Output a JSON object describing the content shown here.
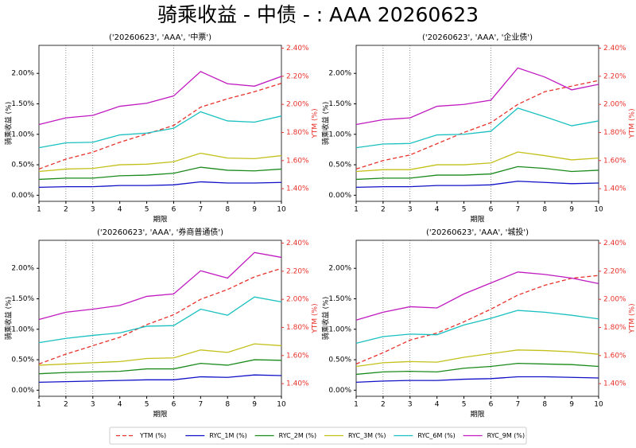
{
  "title": "骑乘收益 - 中债 - : AAA 20260623",
  "chart_data": [
    {
      "type": "line",
      "title": "('20260623', 'AAA', '中票')",
      "x_label": "期限",
      "y_label": "骑乘收益 (%)",
      "y2_label": "YTM (%)",
      "x": [
        1,
        2,
        3,
        4,
        5,
        6,
        7,
        8,
        9,
        10
      ],
      "xlim": [
        1,
        10
      ],
      "xticks": [
        1,
        2,
        3,
        4,
        5,
        6,
        7,
        8,
        9,
        10
      ],
      "vlines": [
        2,
        3,
        6
      ],
      "ylim": [
        -0.1,
        2.46
      ],
      "yticks": [
        {
          "value": 0,
          "label": "0.00%"
        },
        {
          "value": 0.5,
          "label": "0.50%"
        },
        {
          "value": 1,
          "label": "1.00%"
        },
        {
          "value": 1.5,
          "label": "1.50%"
        },
        {
          "value": 2,
          "label": "2.00%"
        }
      ],
      "y2lim": [
        1.31,
        2.42
      ],
      "y2ticks": [
        {
          "value": 1.4,
          "label": "1.40%"
        },
        {
          "value": 1.6,
          "label": "1.60%"
        },
        {
          "value": 1.8,
          "label": "1.80%"
        },
        {
          "value": 2.0,
          "label": "2.00%"
        },
        {
          "value": 2.2,
          "label": "2.20%"
        },
        {
          "value": 2.4,
          "label": "2.40%"
        }
      ],
      "series": [
        {
          "name": "YTM (%)",
          "color": "#e8312a",
          "linestyle": "dashed",
          "axis": "y2",
          "values": [
            1.54,
            1.61,
            1.66,
            1.73,
            1.79,
            1.85,
            1.98,
            2.04,
            2.09,
            2.15
          ]
        },
        {
          "name": "RYC_1M (%)",
          "color": "#1010c8",
          "values": [
            0.13,
            0.14,
            0.14,
            0.16,
            0.16,
            0.17,
            0.22,
            0.2,
            0.2,
            0.21
          ]
        },
        {
          "name": "RYC_2M (%)",
          "color": "#1a8a1a",
          "values": [
            0.26,
            0.28,
            0.28,
            0.32,
            0.33,
            0.36,
            0.46,
            0.41,
            0.4,
            0.43
          ]
        },
        {
          "name": "RYC_3M (%)",
          "color": "#c4c01a",
          "values": [
            0.39,
            0.43,
            0.44,
            0.5,
            0.51,
            0.55,
            0.69,
            0.61,
            0.6,
            0.65
          ]
        },
        {
          "name": "RYC_6M (%)",
          "color": "#1ac0c0",
          "values": [
            0.78,
            0.86,
            0.87,
            0.99,
            1.02,
            1.1,
            1.37,
            1.22,
            1.2,
            1.3
          ]
        },
        {
          "name": "RYC_9M (%)",
          "color": "#c01ac0",
          "values": [
            1.16,
            1.27,
            1.31,
            1.46,
            1.51,
            1.63,
            2.03,
            1.83,
            1.79,
            1.95
          ]
        }
      ]
    },
    {
      "type": "line",
      "title": "('20260623', 'AAA', '企业债')",
      "x_label": "期限",
      "y_label": "骑乘收益 (%)",
      "y2_label": "YTM (%)",
      "x": [
        1,
        2,
        3,
        4,
        5,
        6,
        7,
        8,
        9,
        10
      ],
      "xlim": [
        1,
        10
      ],
      "xticks": [
        1,
        2,
        3,
        4,
        5,
        6,
        7,
        8,
        9,
        10
      ],
      "vlines": [
        2,
        3,
        6
      ],
      "ylim": [
        -0.1,
        2.46
      ],
      "yticks": [
        {
          "value": 0,
          "label": "0.00%"
        },
        {
          "value": 0.5,
          "label": "0.50%"
        },
        {
          "value": 1,
          "label": "1.00%"
        },
        {
          "value": 1.5,
          "label": "1.50%"
        },
        {
          "value": 2,
          "label": "2.00%"
        }
      ],
      "y2lim": [
        1.31,
        2.42
      ],
      "y2ticks": [
        {
          "value": 1.4,
          "label": "1.40%"
        },
        {
          "value": 1.6,
          "label": "1.60%"
        },
        {
          "value": 1.8,
          "label": "1.80%"
        },
        {
          "value": 2.0,
          "label": "2.00%"
        },
        {
          "value": 2.2,
          "label": "2.20%"
        },
        {
          "value": 2.4,
          "label": "2.40%"
        }
      ],
      "series": [
        {
          "name": "YTM (%)",
          "color": "#e8312a",
          "linestyle": "dashed",
          "axis": "y2",
          "values": [
            1.54,
            1.6,
            1.64,
            1.72,
            1.8,
            1.87,
            2.0,
            2.09,
            2.13,
            2.17
          ]
        },
        {
          "name": "RYC_1M (%)",
          "color": "#1010c8",
          "values": [
            0.13,
            0.14,
            0.14,
            0.16,
            0.16,
            0.17,
            0.23,
            0.21,
            0.19,
            0.2
          ]
        },
        {
          "name": "RYC_2M (%)",
          "color": "#1a8a1a",
          "values": [
            0.26,
            0.28,
            0.28,
            0.33,
            0.33,
            0.35,
            0.47,
            0.44,
            0.39,
            0.41
          ]
        },
        {
          "name": "RYC_3M (%)",
          "color": "#c4c01a",
          "values": [
            0.39,
            0.42,
            0.42,
            0.5,
            0.5,
            0.53,
            0.71,
            0.65,
            0.58,
            0.61
          ]
        },
        {
          "name": "RYC_6M (%)",
          "color": "#1ac0c0",
          "values": [
            0.78,
            0.84,
            0.85,
            0.99,
            1.0,
            1.05,
            1.43,
            1.29,
            1.14,
            1.22
          ]
        },
        {
          "name": "RYC_9M (%)",
          "color": "#c01ac0",
          "values": [
            1.16,
            1.24,
            1.27,
            1.46,
            1.49,
            1.56,
            2.09,
            1.94,
            1.73,
            1.82
          ]
        }
      ]
    },
    {
      "type": "line",
      "title": "('20260623', 'AAA', '券商普通债')",
      "x_label": "期限",
      "y_label": "骑乘收益 (%)",
      "y2_label": "YTM (%)",
      "x": [
        1,
        2,
        3,
        4,
        5,
        6,
        7,
        8,
        9,
        10
      ],
      "xlim": [
        1,
        10
      ],
      "xticks": [
        1,
        2,
        3,
        4,
        5,
        6,
        7,
        8,
        9,
        10
      ],
      "vlines": [
        2,
        3,
        6
      ],
      "ylim": [
        -0.1,
        2.46
      ],
      "yticks": [
        {
          "value": 0,
          "label": "0.00%"
        },
        {
          "value": 0.5,
          "label": "0.50%"
        },
        {
          "value": 1,
          "label": "1.00%"
        },
        {
          "value": 1.5,
          "label": "1.50%"
        },
        {
          "value": 2,
          "label": "2.00%"
        }
      ],
      "y2lim": [
        1.31,
        2.42
      ],
      "y2ticks": [
        {
          "value": 1.4,
          "label": "1.40%"
        },
        {
          "value": 1.6,
          "label": "1.60%"
        },
        {
          "value": 1.8,
          "label": "1.80%"
        },
        {
          "value": 2.0,
          "label": "2.00%"
        },
        {
          "value": 2.2,
          "label": "2.20%"
        },
        {
          "value": 2.4,
          "label": "2.40%"
        }
      ],
      "series": [
        {
          "name": "YTM (%)",
          "color": "#e8312a",
          "linestyle": "dashed",
          "axis": "y2",
          "values": [
            1.54,
            1.61,
            1.67,
            1.73,
            1.82,
            1.89,
            2.0,
            2.07,
            2.16,
            2.22
          ]
        },
        {
          "name": "RYC_1M (%)",
          "color": "#1010c8",
          "values": [
            0.13,
            0.14,
            0.15,
            0.16,
            0.17,
            0.17,
            0.22,
            0.21,
            0.25,
            0.24
          ]
        },
        {
          "name": "RYC_2M (%)",
          "color": "#1a8a1a",
          "values": [
            0.27,
            0.29,
            0.3,
            0.31,
            0.35,
            0.35,
            0.44,
            0.41,
            0.5,
            0.49
          ]
        },
        {
          "name": "RYC_3M (%)",
          "color": "#c4c01a",
          "values": [
            0.41,
            0.43,
            0.45,
            0.47,
            0.52,
            0.53,
            0.66,
            0.62,
            0.76,
            0.73
          ]
        },
        {
          "name": "RYC_6M (%)",
          "color": "#1ac0c0",
          "values": [
            0.78,
            0.85,
            0.9,
            0.94,
            1.05,
            1.06,
            1.33,
            1.23,
            1.53,
            1.45
          ]
        },
        {
          "name": "RYC_9M (%)",
          "color": "#c01ac0",
          "values": [
            1.16,
            1.28,
            1.33,
            1.39,
            1.54,
            1.58,
            1.96,
            1.84,
            2.26,
            2.18
          ]
        }
      ]
    },
    {
      "type": "line",
      "title": "('20260623', 'AAA', '城投')",
      "x_label": "期限",
      "y_label": "骑乘收益 (%)",
      "y2_label": "YTM (%)",
      "x": [
        1,
        2,
        3,
        4,
        5,
        6,
        7,
        8,
        9,
        10
      ],
      "xlim": [
        1,
        10
      ],
      "xticks": [
        1,
        2,
        3,
        4,
        5,
        6,
        7,
        8,
        9,
        10
      ],
      "vlines": [
        2,
        3,
        6
      ],
      "ylim": [
        -0.1,
        2.46
      ],
      "yticks": [
        {
          "value": 0,
          "label": "0.00%"
        },
        {
          "value": 0.5,
          "label": "0.50%"
        },
        {
          "value": 1,
          "label": "1.00%"
        },
        {
          "value": 1.5,
          "label": "1.50%"
        },
        {
          "value": 2,
          "label": "2.00%"
        }
      ],
      "y2lim": [
        1.31,
        2.42
      ],
      "y2ticks": [
        {
          "value": 1.4,
          "label": "1.40%"
        },
        {
          "value": 1.6,
          "label": "1.60%"
        },
        {
          "value": 1.8,
          "label": "1.80%"
        },
        {
          "value": 2.0,
          "label": "2.00%"
        },
        {
          "value": 2.2,
          "label": "2.20%"
        },
        {
          "value": 2.4,
          "label": "2.40%"
        }
      ],
      "series": [
        {
          "name": "YTM (%)",
          "color": "#e8312a",
          "linestyle": "dashed",
          "axis": "y2",
          "values": [
            1.54,
            1.62,
            1.71,
            1.76,
            1.84,
            1.93,
            2.03,
            2.1,
            2.15,
            2.17
          ]
        },
        {
          "name": "RYC_1M (%)",
          "color": "#1010c8",
          "values": [
            0.13,
            0.15,
            0.16,
            0.16,
            0.18,
            0.19,
            0.22,
            0.22,
            0.21,
            0.2
          ]
        },
        {
          "name": "RYC_2M (%)",
          "color": "#1a8a1a",
          "values": [
            0.26,
            0.3,
            0.31,
            0.3,
            0.36,
            0.39,
            0.44,
            0.43,
            0.42,
            0.39
          ]
        },
        {
          "name": "RYC_3M (%)",
          "color": "#c4c01a",
          "values": [
            0.39,
            0.45,
            0.47,
            0.46,
            0.54,
            0.6,
            0.66,
            0.65,
            0.63,
            0.59
          ]
        },
        {
          "name": "RYC_6M (%)",
          "color": "#1ac0c0",
          "values": [
            0.77,
            0.88,
            0.92,
            0.91,
            1.07,
            1.18,
            1.31,
            1.28,
            1.23,
            1.17
          ]
        },
        {
          "name": "RYC_9M (%)",
          "color": "#c01ac0",
          "values": [
            1.15,
            1.28,
            1.37,
            1.35,
            1.58,
            1.76,
            1.94,
            1.9,
            1.84,
            1.75
          ]
        }
      ]
    }
  ]
}
